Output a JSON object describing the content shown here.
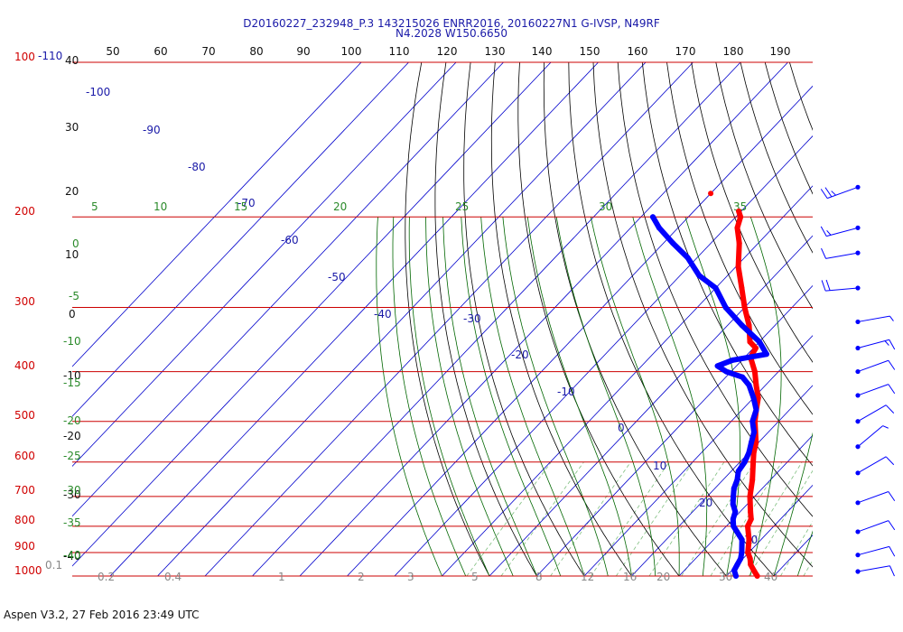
{
  "header": {
    "line1": "D20160227_232948_P.3 143215026 ENRR2016, 20160227N1 G-IVSP, N49RF",
    "line2": "N4.2028 W150.6650"
  },
  "footer": "Aspen V3.2, 27 Feb 2016  23:49 UTC",
  "colors": {
    "temperature": "#ff0000",
    "dewpoint": "#0000ff",
    "isobar": "#cc0000",
    "isotherm": "#0000cc",
    "dry_adiabat": "#000000",
    "moist_adiabat": "#006600",
    "mixing_ratio": "#009900"
  },
  "chart_data": {
    "type": "line",
    "title": "",
    "xlabel": "",
    "ylabel": "",
    "skew_t": true,
    "pressure_axis": {
      "scale": "log",
      "range": [
        1000,
        100
      ],
      "labels": [
        "1000",
        "900",
        "800",
        "700",
        "600",
        "500",
        "400",
        "300",
        "200",
        "100"
      ]
    },
    "top_scale_labels": [
      "50",
      "60",
      "70",
      "80",
      "90",
      "100",
      "110",
      "120",
      "130",
      "140",
      "150",
      "160",
      "170",
      "180",
      "190"
    ],
    "left_black_labels": [
      "40",
      "30",
      "20",
      "10",
      "0",
      "-10",
      "-20",
      "-30",
      "-40"
    ],
    "left_green_labels": [
      "0",
      "-5",
      "-10",
      "-15",
      "-20",
      "-25",
      "-30",
      "-35",
      "-40"
    ],
    "corner_labels": {
      "top_red": "100",
      "top_blue": "-110",
      "bottom_grey": "0.1"
    },
    "isotherm_labels": [
      "-100",
      "-90",
      "-80",
      "-70",
      "-60",
      "-50",
      "-40",
      "-30",
      "-20",
      "-10",
      "0",
      "10",
      "20",
      "30"
    ],
    "moist_adiabat_labels": [
      "5",
      "10",
      "15",
      "20",
      "25",
      "30",
      "35"
    ],
    "mixing_ratio_labels": [
      "0.2",
      "0.4",
      "1",
      "2",
      "3",
      "5",
      "8",
      "12",
      "16",
      "20",
      "30",
      "40"
    ],
    "series": [
      {
        "points": [
          {
            "p": 1000,
            "t": 26.5
          },
          {
            "p": 980,
            "t": 25.0
          },
          {
            "p": 950,
            "t": 22.8
          },
          {
            "p": 925,
            "t": 21.5
          },
          {
            "p": 900,
            "t": 19.8
          },
          {
            "p": 850,
            "t": 17.5
          },
          {
            "p": 800,
            "t": 14.5
          },
          {
            "p": 775,
            "t": 13.8
          },
          {
            "p": 750,
            "t": 12.2
          },
          {
            "p": 700,
            "t": 9.0
          },
          {
            "p": 650,
            "t": 6.2
          },
          {
            "p": 600,
            "t": 2.8
          },
          {
            "p": 575,
            "t": 1.0
          },
          {
            "p": 550,
            "t": -0.5
          },
          {
            "p": 500,
            "t": -5.0
          },
          {
            "p": 475,
            "t": -7.0
          },
          {
            "p": 450,
            "t": -9.0
          },
          {
            "p": 425,
            "t": -12.0
          },
          {
            "p": 400,
            "t": -15.0
          },
          {
            "p": 375,
            "t": -18.8
          },
          {
            "p": 360,
            "t": -19.5
          },
          {
            "p": 350,
            "t": -22.0
          },
          {
            "p": 325,
            "t": -25.5
          },
          {
            "p": 300,
            "t": -30.0
          },
          {
            "p": 275,
            "t": -34.5
          },
          {
            "p": 250,
            "t": -39.5
          },
          {
            "p": 225,
            "t": -44.0
          },
          {
            "p": 210,
            "t": -47.5
          },
          {
            "p": 200,
            "t": -49.0
          },
          {
            "p": 195,
            "t": -50.5
          }
        ]
      },
      {
        "points": [
          {
            "p": 1000,
            "t": 22.0
          },
          {
            "p": 975,
            "t": 20.5
          },
          {
            "p": 950,
            "t": 20.0
          },
          {
            "p": 925,
            "t": 19.5
          },
          {
            "p": 900,
            "t": 18.5
          },
          {
            "p": 850,
            "t": 16.0
          },
          {
            "p": 800,
            "t": 11.5
          },
          {
            "p": 775,
            "t": 10.0
          },
          {
            "p": 750,
            "t": 9.0
          },
          {
            "p": 725,
            "t": 7.0
          },
          {
            "p": 700,
            "t": 5.5
          },
          {
            "p": 675,
            "t": 4.0
          },
          {
            "p": 650,
            "t": 3.0
          },
          {
            "p": 625,
            "t": 1.5
          },
          {
            "p": 600,
            "t": 1.0
          },
          {
            "p": 575,
            "t": 0.0
          },
          {
            "p": 550,
            "t": -1.5
          },
          {
            "p": 525,
            "t": -3.0
          },
          {
            "p": 500,
            "t": -5.5
          },
          {
            "p": 475,
            "t": -7.0
          },
          {
            "p": 450,
            "t": -10.0
          },
          {
            "p": 425,
            "t": -13.5
          },
          {
            "p": 410,
            "t": -16.5
          },
          {
            "p": 400,
            "t": -21.0
          },
          {
            "p": 390,
            "t": -24.0
          },
          {
            "p": 380,
            "t": -22.0
          },
          {
            "p": 370,
            "t": -16.0
          },
          {
            "p": 350,
            "t": -20.0
          },
          {
            "p": 325,
            "t": -27.0
          },
          {
            "p": 300,
            "t": -34.0
          },
          {
            "p": 275,
            "t": -40.0
          },
          {
            "p": 260,
            "t": -46.0
          },
          {
            "p": 240,
            "t": -52.0
          },
          {
            "p": 225,
            "t": -58.0
          },
          {
            "p": 210,
            "t": -64.0
          },
          {
            "p": 200,
            "t": -67.5
          }
        ]
      }
    ],
    "isolated_point": {
      "p": 180,
      "t": -60.0
    },
    "wind_barbs": [
      {
        "p": 175,
        "dir": 250,
        "kt": 25
      },
      {
        "p": 210,
        "dir": 255,
        "kt": 15
      },
      {
        "p": 235,
        "dir": 260,
        "kt": 10
      },
      {
        "p": 275,
        "dir": 265,
        "kt": 20
      },
      {
        "p": 320,
        "dir": 80,
        "kt": 5
      },
      {
        "p": 360,
        "dir": 75,
        "kt": 15
      },
      {
        "p": 400,
        "dir": 70,
        "kt": 10
      },
      {
        "p": 445,
        "dir": 70,
        "kt": 10
      },
      {
        "p": 500,
        "dir": 60,
        "kt": 10
      },
      {
        "p": 560,
        "dir": 50,
        "kt": 5
      },
      {
        "p": 630,
        "dir": 60,
        "kt": 10
      },
      {
        "p": 720,
        "dir": 70,
        "kt": 10
      },
      {
        "p": 820,
        "dir": 70,
        "kt": 10
      },
      {
        "p": 910,
        "dir": 75,
        "kt": 10
      },
      {
        "p": 980,
        "dir": 80,
        "kt": 10
      }
    ]
  }
}
